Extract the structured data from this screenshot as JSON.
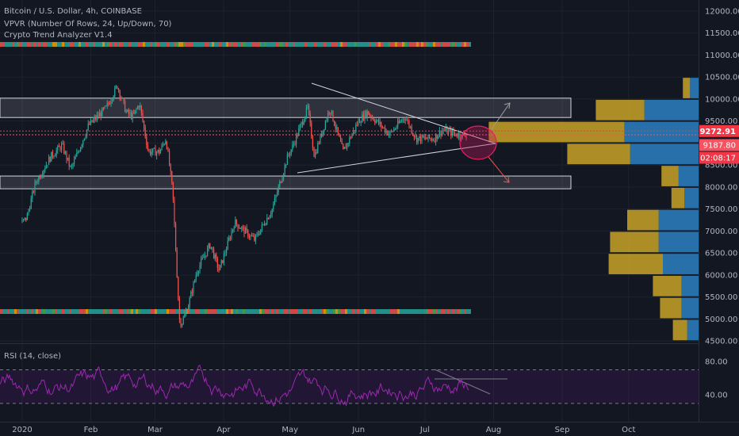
{
  "chart": {
    "title": "Bitcoin / U.S. Dollar, 4h, COINBASE",
    "indicators": [
      "VPVR (Number Of Rows, 24, Up/Down, 70)",
      "Crypto Trend Analyzer V1.4"
    ],
    "rsi_label": "RSI (14, close)"
  },
  "price_badges": {
    "last_price": "9272.91",
    "alt_price": "9187.80",
    "countdown": "02:08:17"
  },
  "colors": {
    "background": "#131722",
    "up": "#26a69a",
    "down": "#ef5350",
    "rsi_line": "#9c27b0",
    "last_price": "#f23645",
    "alt_price": "#f7525f",
    "countdown": "#f23645",
    "vpvr_up": "#2a7ab8",
    "vpvr_down": "#c9a227"
  },
  "chart_data": {
    "type": "candlestick",
    "y_axis": {
      "tick_labels": [
        "12000.00",
        "11500.00",
        "11000.00",
        "10500.00",
        "10000.00",
        "9500.00",
        "9000.00",
        "8500.00",
        "8000.00",
        "7500.00",
        "7000.00",
        "6500.00",
        "6000.00",
        "5500.00",
        "5000.00",
        "4500.00"
      ],
      "range": [
        4450,
        12250
      ]
    },
    "rsi_axis": {
      "tick_labels": [
        "80.00",
        "40.00"
      ],
      "bands": [
        70,
        30
      ]
    },
    "x_axis": {
      "tick_labels": [
        "2020",
        "Feb",
        "Mar",
        "Apr",
        "May",
        "Jun",
        "Jul",
        "Aug",
        "Sep",
        "Oct"
      ],
      "dates": [
        "2020-01-01",
        "2020-02-01",
        "2020-03-01",
        "2020-04-01",
        "2020-05-01",
        "2020-06-01",
        "2020-07-01",
        "2020-08-01",
        "2020-09-01",
        "2020-10-01"
      ]
    },
    "price_path": [
      [
        "2020-01-01",
        7200
      ],
      [
        "2020-01-03",
        7300
      ],
      [
        "2020-01-07",
        8100
      ],
      [
        "2020-01-14",
        8700
      ],
      [
        "2020-01-19",
        8950
      ],
      [
        "2020-01-23",
        8400
      ],
      [
        "2020-01-27",
        8900
      ],
      [
        "2020-01-31",
        9400
      ],
      [
        "2020-02-08",
        9800
      ],
      [
        "2020-02-13",
        10300
      ],
      [
        "2020-02-17",
        9700
      ],
      [
        "2020-02-20",
        9600
      ],
      [
        "2020-02-23",
        9900
      ],
      [
        "2020-02-27",
        8800
      ],
      [
        "2020-03-03",
        8800
      ],
      [
        "2020-03-06",
        9100
      ],
      [
        "2020-03-09",
        7900
      ],
      [
        "2020-03-12",
        5000
      ],
      [
        "2020-03-13",
        4900
      ],
      [
        "2020-03-16",
        5300
      ],
      [
        "2020-03-20",
        6100
      ],
      [
        "2020-03-26",
        6700
      ],
      [
        "2020-03-30",
        6100
      ],
      [
        "2020-04-06",
        7200
      ],
      [
        "2020-04-15",
        6800
      ],
      [
        "2020-04-23",
        7500
      ],
      [
        "2020-04-30",
        8700
      ],
      [
        "2020-05-02",
        8900
      ],
      [
        "2020-05-09",
        9800
      ],
      [
        "2020-05-12",
        8700
      ],
      [
        "2020-05-19",
        9800
      ],
      [
        "2020-05-25",
        8800
      ],
      [
        "2020-06-01",
        9500
      ],
      [
        "2020-06-05",
        9700
      ],
      [
        "2020-06-15",
        9200
      ],
      [
        "2020-06-22",
        9600
      ],
      [
        "2020-06-27",
        9100
      ],
      [
        "2020-07-05",
        9100
      ],
      [
        "2020-07-09",
        9300
      ],
      [
        "2020-07-15",
        9200
      ],
      [
        "2020-07-20",
        9170
      ]
    ],
    "trend_band_rows": [
      53,
      390
    ]
  },
  "zones": [
    {
      "name": "resistance-zone",
      "top": 10020,
      "bottom": 9580
    },
    {
      "name": "support-zone",
      "top": 8250,
      "bottom": 7960
    }
  ],
  "levels": {
    "last_price_line": 9272.91,
    "alt_price_line": 9187.8
  },
  "vpvr_rows": [
    {
      "price": 10250,
      "up": 0.06,
      "down": 0.05
    },
    {
      "price": 9750,
      "up": 0.38,
      "down": 0.34
    },
    {
      "price": 9250,
      "up": 0.52,
      "down": 0.95
    },
    {
      "price": 8750,
      "up": 0.48,
      "down": 0.44
    },
    {
      "price": 8250,
      "up": 0.14,
      "down": 0.12
    },
    {
      "price": 7750,
      "up": 0.1,
      "down": 0.09
    },
    {
      "price": 7250,
      "up": 0.28,
      "down": 0.22
    },
    {
      "price": 6750,
      "up": 0.28,
      "down": 0.34
    },
    {
      "price": 6250,
      "up": 0.25,
      "down": 0.38
    },
    {
      "price": 5750,
      "up": 0.12,
      "down": 0.2
    },
    {
      "price": 5250,
      "up": 0.12,
      "down": 0.15
    },
    {
      "price": 4750,
      "up": 0.08,
      "down": 0.1
    }
  ]
}
